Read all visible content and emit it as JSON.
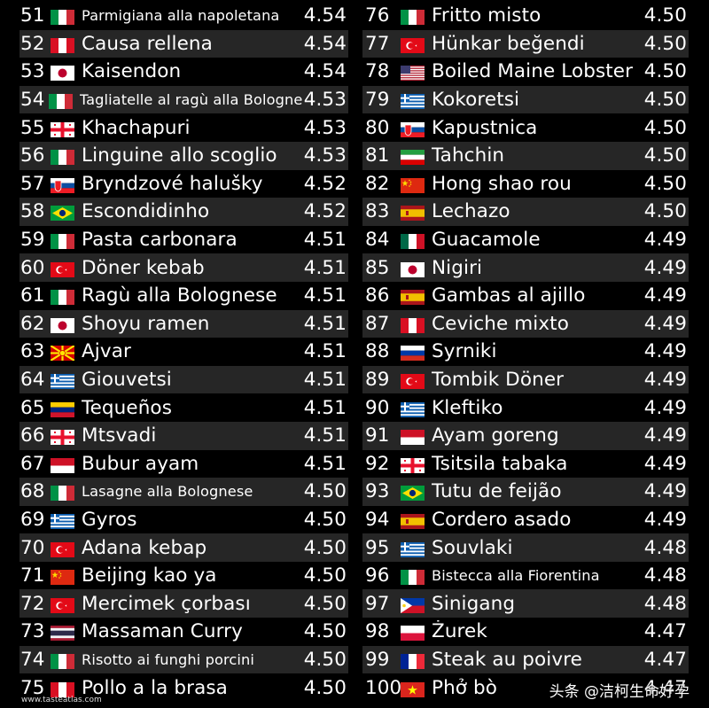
{
  "left_column": [
    {
      "rank": "51",
      "flag": "italy",
      "name": "Parmigiana alla napoletana",
      "score": "4.54",
      "small": true
    },
    {
      "rank": "52",
      "flag": "peru",
      "name": "Causa rellena",
      "score": "4.54"
    },
    {
      "rank": "53",
      "flag": "japan",
      "name": "Kaisendon",
      "score": "4.54"
    },
    {
      "rank": "54",
      "flag": "italy",
      "name": "Tagliatelle al ragù alla Bolognese",
      "score": "4.53",
      "small": true
    },
    {
      "rank": "55",
      "flag": "georgia",
      "name": "Khachapuri",
      "score": "4.53"
    },
    {
      "rank": "56",
      "flag": "italy",
      "name": "Linguine allo scoglio",
      "score": "4.53"
    },
    {
      "rank": "57",
      "flag": "slovakia",
      "name": "Bryndzové halušky",
      "score": "4.52"
    },
    {
      "rank": "58",
      "flag": "brazil",
      "name": "Escondidinho",
      "score": "4.52"
    },
    {
      "rank": "59",
      "flag": "italy",
      "name": "Pasta carbonara",
      "score": "4.51"
    },
    {
      "rank": "60",
      "flag": "turkey",
      "name": "Döner kebab",
      "score": "4.51"
    },
    {
      "rank": "61",
      "flag": "italy",
      "name": "Ragù alla Bolognese",
      "score": "4.51"
    },
    {
      "rank": "62",
      "flag": "japan",
      "name": "Shoyu ramen",
      "score": "4.51"
    },
    {
      "rank": "63",
      "flag": "north-macedonia",
      "name": "Ajvar",
      "score": "4.51"
    },
    {
      "rank": "64",
      "flag": "greece",
      "name": "Giouvetsi",
      "score": "4.51"
    },
    {
      "rank": "65",
      "flag": "venezuela",
      "name": "Tequeños",
      "score": "4.51"
    },
    {
      "rank": "66",
      "flag": "georgia",
      "name": "Mtsvadi",
      "score": "4.51"
    },
    {
      "rank": "67",
      "flag": "indonesia",
      "name": "Bubur ayam",
      "score": "4.51"
    },
    {
      "rank": "68",
      "flag": "italy",
      "name": "Lasagne alla Bolognese",
      "score": "4.50",
      "small": true
    },
    {
      "rank": "69",
      "flag": "greece",
      "name": "Gyros",
      "score": "4.50"
    },
    {
      "rank": "70",
      "flag": "turkey",
      "name": "Adana kebap",
      "score": "4.50"
    },
    {
      "rank": "71",
      "flag": "china",
      "name": "Beijing kao ya",
      "score": "4.50"
    },
    {
      "rank": "72",
      "flag": "turkey",
      "name": "Mercimek çorbası",
      "score": "4.50"
    },
    {
      "rank": "73",
      "flag": "thailand",
      "name": "Massaman Curry",
      "score": "4.50"
    },
    {
      "rank": "74",
      "flag": "italy",
      "name": "Risotto ai funghi porcini",
      "score": "4.50",
      "small": true
    },
    {
      "rank": "75",
      "flag": "peru",
      "name": "Pollo a la brasa",
      "score": "4.50"
    }
  ],
  "right_column": [
    {
      "rank": "76",
      "flag": "italy",
      "name": "Fritto misto",
      "score": "4.50"
    },
    {
      "rank": "77",
      "flag": "turkey",
      "name": "Hünkar beğendi",
      "score": "4.50"
    },
    {
      "rank": "78",
      "flag": "usa",
      "name": "Boiled Maine Lobster",
      "score": "4.50"
    },
    {
      "rank": "79",
      "flag": "greece",
      "name": "Kokoretsi",
      "score": "4.50"
    },
    {
      "rank": "80",
      "flag": "slovakia",
      "name": "Kapustnica",
      "score": "4.50"
    },
    {
      "rank": "81",
      "flag": "iran",
      "name": "Tahchin",
      "score": "4.50"
    },
    {
      "rank": "82",
      "flag": "china",
      "name": "Hong shao rou",
      "score": "4.50"
    },
    {
      "rank": "83",
      "flag": "spain",
      "name": "Lechazo",
      "score": "4.50"
    },
    {
      "rank": "84",
      "flag": "mexico",
      "name": "Guacamole",
      "score": "4.49"
    },
    {
      "rank": "85",
      "flag": "japan",
      "name": "Nigiri",
      "score": "4.49"
    },
    {
      "rank": "86",
      "flag": "spain",
      "name": "Gambas al ajillo",
      "score": "4.49"
    },
    {
      "rank": "87",
      "flag": "peru",
      "name": "Ceviche mixto",
      "score": "4.49"
    },
    {
      "rank": "88",
      "flag": "russia",
      "name": "Syrniki",
      "score": "4.49"
    },
    {
      "rank": "89",
      "flag": "turkey",
      "name": "Tombik Döner",
      "score": "4.49"
    },
    {
      "rank": "90",
      "flag": "greece",
      "name": "Kleftiko",
      "score": "4.49"
    },
    {
      "rank": "91",
      "flag": "indonesia",
      "name": "Ayam goreng",
      "score": "4.49"
    },
    {
      "rank": "92",
      "flag": "georgia",
      "name": "Tsitsila tabaka",
      "score": "4.49"
    },
    {
      "rank": "93",
      "flag": "brazil",
      "name": "Tutu de feijão",
      "score": "4.49"
    },
    {
      "rank": "94",
      "flag": "spain",
      "name": "Cordero asado",
      "score": "4.49"
    },
    {
      "rank": "95",
      "flag": "greece",
      "name": "Souvlaki",
      "score": "4.48"
    },
    {
      "rank": "96",
      "flag": "italy",
      "name": "Bistecca alla Fiorentina",
      "score": "4.48",
      "small": true
    },
    {
      "rank": "97",
      "flag": "philippines",
      "name": "Sinigang",
      "score": "4.48"
    },
    {
      "rank": "98",
      "flag": "poland",
      "name": "Żurek",
      "score": "4.47"
    },
    {
      "rank": "99",
      "flag": "france",
      "name": "Steak au poivre",
      "score": "4.47"
    },
    {
      "rank": "100",
      "flag": "vietnam",
      "name": "Phở bò",
      "score": "4.47"
    }
  ],
  "footer": {
    "source": "www.tasteatlas.com"
  },
  "watermark": {
    "text": "头条 @洁柯生命好孕"
  }
}
